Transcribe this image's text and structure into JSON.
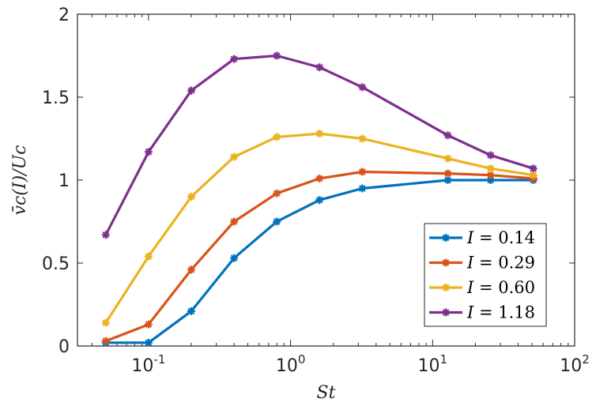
{
  "chart_data": {
    "type": "line",
    "xscale": "log",
    "xlim": [
      0.0316,
      100
    ],
    "ylim": [
      0,
      2
    ],
    "xlabel": "St",
    "ylabel": "v̄c(I)/Uc",
    "x_ticks": [
      {
        "value": 0.1,
        "base": "10",
        "exp": "-1"
      },
      {
        "value": 1,
        "base": "10",
        "exp": "0"
      },
      {
        "value": 10,
        "base": "10",
        "exp": "1"
      },
      {
        "value": 100,
        "base": "10",
        "exp": "2"
      }
    ],
    "y_ticks": [
      {
        "value": 0,
        "label": "0"
      },
      {
        "value": 0.5,
        "label": "0.5"
      },
      {
        "value": 1,
        "label": "1"
      },
      {
        "value": 1.5,
        "label": "1.5"
      },
      {
        "value": 2,
        "label": "2"
      }
    ],
    "grid": false,
    "legend_position": "bottom-right",
    "x": [
      0.05,
      0.1,
      0.2,
      0.4,
      0.8,
      1.6,
      3.2,
      12.8,
      25.6,
      51.2
    ],
    "series": [
      {
        "name": "I = 0.14",
        "legend_var": "I",
        "legend_val": " = 0.14",
        "color": "#0072BD",
        "values": [
          0.02,
          0.02,
          0.21,
          0.53,
          0.75,
          0.88,
          0.95,
          1.0,
          1.0,
          1.0
        ]
      },
      {
        "name": "I = 0.29",
        "legend_var": "I",
        "legend_val": " = 0.29",
        "color": "#D95319",
        "values": [
          0.03,
          0.13,
          0.46,
          0.75,
          0.92,
          1.01,
          1.05,
          1.04,
          1.03,
          1.01
        ]
      },
      {
        "name": "I = 0.60",
        "legend_var": "I",
        "legend_val": " = 0.60",
        "color": "#EDB120",
        "values": [
          0.14,
          0.54,
          0.9,
          1.14,
          1.26,
          1.28,
          1.25,
          1.13,
          1.07,
          1.03
        ]
      },
      {
        "name": "I = 1.18",
        "legend_var": "I",
        "legend_val": " = 1.18",
        "color": "#7E2F8E",
        "values": [
          0.67,
          1.17,
          1.54,
          1.73,
          1.75,
          1.68,
          1.56,
          1.27,
          1.15,
          1.07
        ]
      }
    ]
  }
}
